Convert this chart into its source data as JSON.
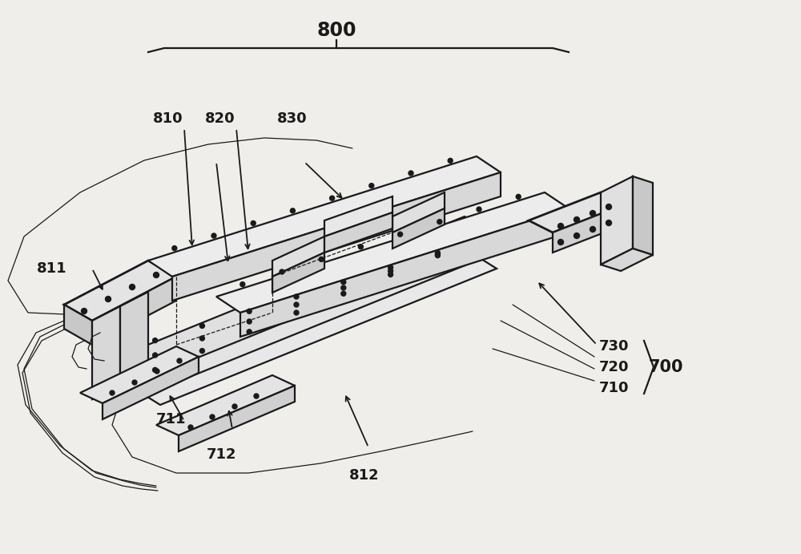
{
  "bg_color": "#f0eeea",
  "line_color": "#1a1a1a",
  "figsize": [
    10.0,
    6.91
  ],
  "dpi": 100,
  "lw_main": 1.6,
  "lw_thick": 2.0,
  "lw_thin": 0.9,
  "fs_large": 15,
  "fs_small": 13
}
